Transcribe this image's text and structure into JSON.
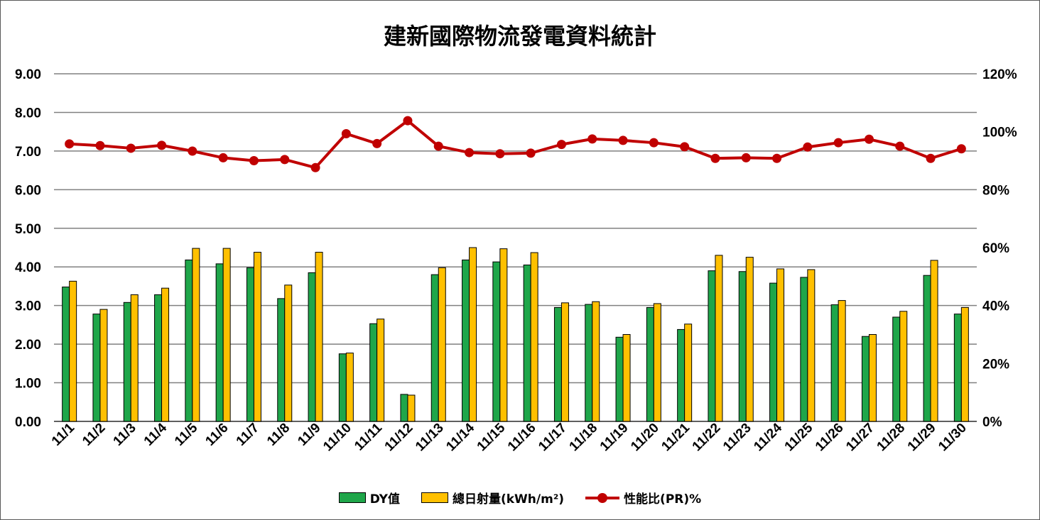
{
  "chart_data": {
    "type": "bar",
    "title": "建新國際物流發電資料統計",
    "categories": [
      "11/1",
      "11/2",
      "11/3",
      "11/4",
      "11/5",
      "11/6",
      "11/7",
      "11/8",
      "11/9",
      "11/10",
      "11/11",
      "11/12",
      "11/13",
      "11/14",
      "11/15",
      "11/16",
      "11/17",
      "11/18",
      "11/19",
      "11/20",
      "11/21",
      "11/22",
      "11/23",
      "11/24",
      "11/25",
      "11/26",
      "11/27",
      "11/28",
      "11/29",
      "11/30"
    ],
    "series": [
      {
        "name": "DY值",
        "type": "bar",
        "axis": "left",
        "color": "#1fa64a",
        "values": [
          3.48,
          2.78,
          3.08,
          3.28,
          4.18,
          4.08,
          3.98,
          3.18,
          3.85,
          1.75,
          2.53,
          0.7,
          3.8,
          4.18,
          4.13,
          4.05,
          2.95,
          3.03,
          2.18,
          2.95,
          2.38,
          3.9,
          3.88,
          3.58,
          3.73,
          3.02,
          2.2,
          2.7,
          3.78,
          2.78
        ]
      },
      {
        "name": "總日射量(kWh/m²)",
        "type": "bar",
        "axis": "left",
        "color": "#ffc000",
        "values": [
          3.63,
          2.9,
          3.28,
          3.45,
          4.48,
          4.48,
          4.38,
          3.53,
          4.38,
          1.77,
          2.65,
          0.68,
          3.98,
          4.5,
          4.47,
          4.37,
          3.07,
          3.1,
          2.25,
          3.05,
          2.52,
          4.3,
          4.25,
          3.95,
          3.93,
          3.13,
          2.25,
          2.85,
          4.17,
          2.95
        ]
      },
      {
        "name": "性能比(PR)%",
        "type": "line",
        "axis": "right",
        "color": "#c00000",
        "values": [
          95.8,
          95.2,
          94.3,
          95.3,
          93.3,
          91.0,
          90.0,
          90.4,
          87.6,
          99.3,
          95.9,
          103.8,
          95.0,
          92.8,
          92.4,
          92.6,
          95.6,
          97.5,
          97.0,
          96.2,
          94.8,
          90.8,
          91.0,
          90.8,
          94.7,
          96.2,
          97.4,
          95.0,
          90.8,
          94.1
        ]
      }
    ],
    "y_left": {
      "ylim": [
        0,
        9
      ],
      "ticks": [
        "0.00",
        "1.00",
        "2.00",
        "3.00",
        "4.00",
        "5.00",
        "6.00",
        "7.00",
        "8.00",
        "9.00"
      ]
    },
    "y_right": {
      "ylim": [
        0,
        120
      ],
      "ticks": [
        "0%",
        "20%",
        "40%",
        "60%",
        "80%",
        "100%",
        "120%"
      ]
    },
    "grid": true,
    "legend": "bottom"
  }
}
